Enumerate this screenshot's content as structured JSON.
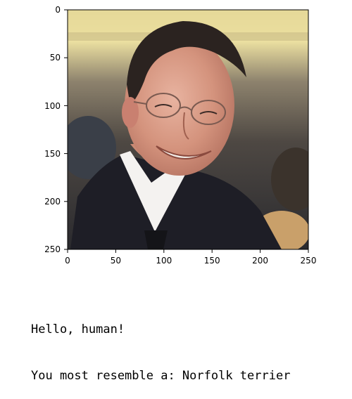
{
  "image_panel": {
    "image_subject": "photo of a smiling man in a suit",
    "x_ticks": [
      "0",
      "50",
      "100",
      "150",
      "200",
      "250"
    ],
    "y_ticks": [
      "0",
      "50",
      "100",
      "150",
      "200",
      "250"
    ]
  },
  "output": {
    "line1": "Hello, human!",
    "line2": "You most resemble a: Norfolk terrier"
  }
}
